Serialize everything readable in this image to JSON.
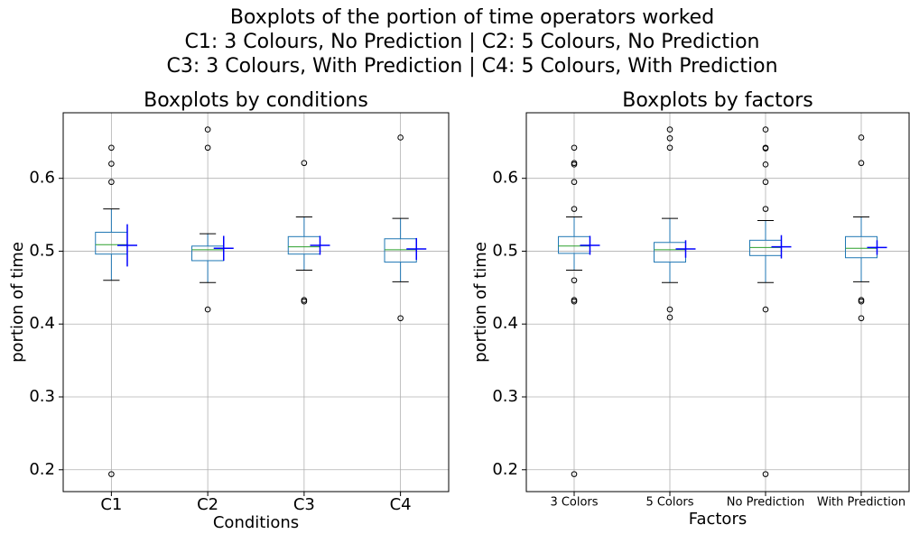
{
  "title": [
    "Boxplots of the portion of time operators worked",
    "C1: 3 Colours, No Prediction | C2: 5 Colours, No Prediction",
    "C3: 3 Colours, With Prediction | C4: 5 Colours, With Prediction"
  ],
  "chart_data": [
    {
      "type": "box",
      "title": "Boxplots by conditions",
      "xlabel": "Conditions",
      "ylabel": "portion of time",
      "categories": [
        "C1",
        "C2",
        "C3",
        "C4"
      ],
      "boxes": [
        {
          "whislo": 0.46,
          "q1": 0.496,
          "med": 0.509,
          "q3": 0.526,
          "whishi": 0.558,
          "fliers": [
            0.642,
            0.62,
            0.595,
            0.194
          ]
        },
        {
          "whislo": 0.457,
          "q1": 0.487,
          "med": 0.502,
          "q3": 0.507,
          "whishi": 0.524,
          "fliers": [
            0.667,
            0.642,
            0.42
          ]
        },
        {
          "whislo": 0.474,
          "q1": 0.496,
          "med": 0.506,
          "q3": 0.52,
          "whishi": 0.547,
          "fliers": [
            0.621,
            0.433,
            0.431
          ]
        },
        {
          "whislo": 0.458,
          "q1": 0.485,
          "med": 0.502,
          "q3": 0.517,
          "whishi": 0.545,
          "fliers": [
            0.656,
            0.408
          ]
        }
      ],
      "means": [
        0.508,
        0.504,
        0.508,
        0.503
      ],
      "errors": [
        0.029,
        0.017,
        0.013,
        0.015
      ],
      "ylim": [
        0.17,
        0.69
      ],
      "yticks": [
        0.2,
        0.3,
        0.4,
        0.5,
        0.6
      ],
      "grid": true,
      "box_color": "#1f77b4",
      "median_color": "#2ca02c",
      "mean_color": "#0000ff"
    },
    {
      "type": "box",
      "title": "Boxplots by factors",
      "xlabel": "Factors",
      "ylabel": "portion of time",
      "categories": [
        "3 Colors",
        "5 Colors",
        "No Prediction",
        "With Prediction"
      ],
      "boxes": [
        {
          "whislo": 0.474,
          "q1": 0.497,
          "med": 0.507,
          "q3": 0.52,
          "whishi": 0.547,
          "fliers": [
            0.642,
            0.621,
            0.619,
            0.595,
            0.558,
            0.46,
            0.433,
            0.431,
            0.194
          ]
        },
        {
          "whislo": 0.457,
          "q1": 0.485,
          "med": 0.502,
          "q3": 0.512,
          "whishi": 0.545,
          "fliers": [
            0.667,
            0.655,
            0.642,
            0.42,
            0.409
          ]
        },
        {
          "whislo": 0.457,
          "q1": 0.494,
          "med": 0.505,
          "q3": 0.515,
          "whishi": 0.542,
          "fliers": [
            0.667,
            0.642,
            0.641,
            0.619,
            0.595,
            0.558,
            0.42,
            0.194
          ]
        },
        {
          "whislo": 0.458,
          "q1": 0.491,
          "med": 0.504,
          "q3": 0.52,
          "whishi": 0.547,
          "fliers": [
            0.656,
            0.621,
            0.433,
            0.431,
            0.408
          ]
        }
      ],
      "means": [
        0.508,
        0.503,
        0.506,
        0.505
      ],
      "errors": [
        0.013,
        0.012,
        0.016,
        0.01
      ],
      "ylim": [
        0.17,
        0.69
      ],
      "yticks": [
        0.2,
        0.3,
        0.4,
        0.5,
        0.6
      ],
      "grid": true,
      "box_color": "#1f77b4",
      "median_color": "#2ca02c",
      "mean_color": "#0000ff"
    }
  ]
}
